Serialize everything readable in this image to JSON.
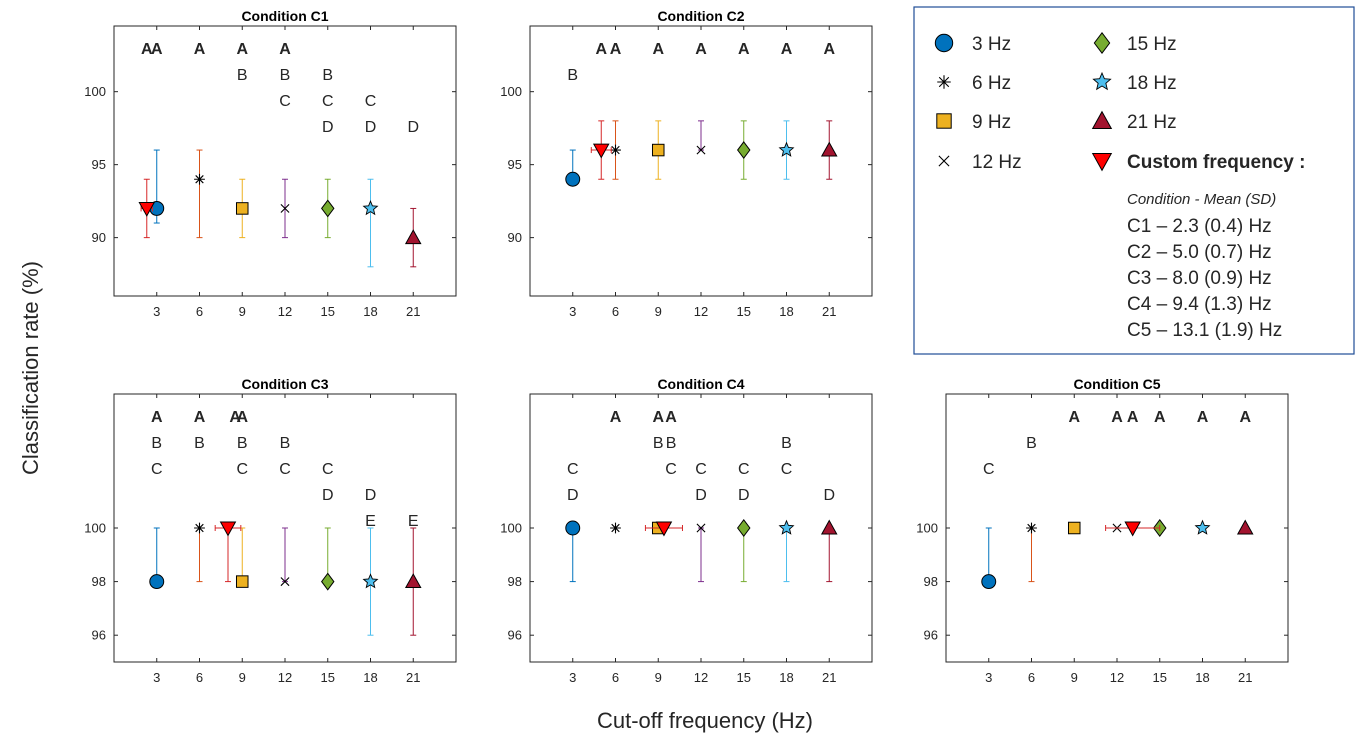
{
  "figure": {
    "ylabel": "Classification rate (%)",
    "xlabel": "Cut-off frequency (Hz)"
  },
  "legend": {
    "entries": [
      {
        "label": "3 Hz",
        "marker": "circle",
        "color": "#0072BD"
      },
      {
        "label": "6 Hz",
        "marker": "asterisk",
        "color": "#000000"
      },
      {
        "label": "9 Hz",
        "marker": "square",
        "color": "#EDB120"
      },
      {
        "label": "12 Hz",
        "marker": "x",
        "color": "#000000"
      },
      {
        "label": "15 Hz",
        "marker": "diamond",
        "color": "#77AC30"
      },
      {
        "label": "18 Hz",
        "marker": "star",
        "color": "#4DBEEE"
      },
      {
        "label": "21 Hz",
        "marker": "triangle-up",
        "color": "#A2142F"
      },
      {
        "label": "Custom frequency :",
        "marker": "triangle-down",
        "color": "#FF0000"
      }
    ],
    "subtitle": "Condition - Mean (SD)",
    "custom_lines": [
      "C1 – 2.3 (0.4) Hz",
      "C2 – 5.0 (0.7) Hz",
      "C3 – 8.0 (0.9) Hz",
      "C4 – 9.4 (1.3) Hz",
      "C5 – 13.1 (1.9) Hz"
    ]
  },
  "chart_data": [
    {
      "type": "scatter",
      "title": "Condition C1",
      "xlabel": "Cut-off frequency (Hz)",
      "ylabel": "Classification rate (%)",
      "xlim": [
        0,
        24
      ],
      "ylim": [
        86,
        104.5
      ],
      "xticks": [
        3,
        6,
        9,
        12,
        15,
        18,
        21
      ],
      "yticks": [
        90,
        95,
        100
      ],
      "grid": false,
      "points": [
        {
          "x": 3,
          "y": 92,
          "low": 91,
          "high": 96,
          "series": "3 Hz"
        },
        {
          "x": 6,
          "y": 94,
          "low": 90,
          "high": 96,
          "series": "6 Hz"
        },
        {
          "x": 9,
          "y": 92,
          "low": 90,
          "high": 94,
          "series": "9 Hz"
        },
        {
          "x": 12,
          "y": 92,
          "low": 90,
          "high": 94,
          "series": "12 Hz"
        },
        {
          "x": 15,
          "y": 92,
          "low": 90,
          "high": 94,
          "series": "15 Hz"
        },
        {
          "x": 18,
          "y": 92,
          "low": 88,
          "high": 94,
          "series": "18 Hz"
        },
        {
          "x": 21,
          "y": 90,
          "low": 88,
          "high": 92,
          "series": "21 Hz"
        },
        {
          "x": 2.3,
          "y": 92,
          "low": 90,
          "high": 94,
          "xerr": 0.4,
          "series": "Custom frequency :"
        }
      ],
      "letters": [
        {
          "x": 2.3,
          "rows": [
            "A"
          ]
        },
        {
          "x": 3,
          "rows": [
            "A"
          ]
        },
        {
          "x": 6,
          "rows": [
            "A"
          ]
        },
        {
          "x": 9,
          "rows": [
            "A",
            "B"
          ]
        },
        {
          "x": 12,
          "rows": [
            "A",
            "B",
            "C"
          ]
        },
        {
          "x": 15,
          "rows": [
            "",
            "B",
            "C",
            "D"
          ]
        },
        {
          "x": 18,
          "rows": [
            "",
            "",
            "C",
            "D"
          ]
        },
        {
          "x": 21,
          "rows": [
            "",
            "",
            "",
            "D"
          ]
        }
      ]
    },
    {
      "type": "scatter",
      "title": "Condition C2",
      "xlabel": "Cut-off frequency (Hz)",
      "ylabel": "Classification rate (%)",
      "xlim": [
        0,
        24
      ],
      "ylim": [
        86,
        104.5
      ],
      "xticks": [
        3,
        6,
        9,
        12,
        15,
        18,
        21
      ],
      "yticks": [
        90,
        95,
        100
      ],
      "grid": false,
      "points": [
        {
          "x": 3,
          "y": 94,
          "low": 94,
          "high": 96,
          "series": "3 Hz"
        },
        {
          "x": 6,
          "y": 96,
          "low": 94,
          "high": 98,
          "series": "6 Hz"
        },
        {
          "x": 9,
          "y": 96,
          "low": 94,
          "high": 98,
          "series": "9 Hz"
        },
        {
          "x": 12,
          "y": 96,
          "low": 96,
          "high": 98,
          "series": "12 Hz"
        },
        {
          "x": 15,
          "y": 96,
          "low": 94,
          "high": 98,
          "series": "15 Hz"
        },
        {
          "x": 18,
          "y": 96,
          "low": 94,
          "high": 98,
          "series": "18 Hz"
        },
        {
          "x": 21,
          "y": 96,
          "low": 94,
          "high": 98,
          "series": "21 Hz"
        },
        {
          "x": 5.0,
          "y": 96,
          "low": 94,
          "high": 98,
          "xerr": 0.7,
          "series": "Custom frequency :"
        }
      ],
      "letters": [
        {
          "x": 3,
          "rows": [
            "",
            "B"
          ]
        },
        {
          "x": 5.0,
          "rows": [
            "A"
          ]
        },
        {
          "x": 6,
          "rows": [
            "A"
          ]
        },
        {
          "x": 9,
          "rows": [
            "A"
          ]
        },
        {
          "x": 12,
          "rows": [
            "A"
          ]
        },
        {
          "x": 15,
          "rows": [
            "A"
          ]
        },
        {
          "x": 18,
          "rows": [
            "A"
          ]
        },
        {
          "x": 21,
          "rows": [
            "A"
          ]
        }
      ]
    },
    {
      "type": "scatter",
      "title": "Condition C3",
      "xlabel": "Cut-off frequency (Hz)",
      "ylabel": "Classification rate (%)",
      "xlim": [
        0,
        24
      ],
      "ylim": [
        95,
        105
      ],
      "xticks": [
        3,
        6,
        9,
        12,
        15,
        18,
        21
      ],
      "yticks": [
        96,
        98,
        100
      ],
      "grid": false,
      "points": [
        {
          "x": 3,
          "y": 98,
          "low": 98,
          "high": 100,
          "series": "3 Hz"
        },
        {
          "x": 6,
          "y": 100,
          "low": 98,
          "high": 100,
          "series": "6 Hz"
        },
        {
          "x": 9,
          "y": 98,
          "low": 98,
          "high": 100,
          "series": "9 Hz"
        },
        {
          "x": 12,
          "y": 98,
          "low": 98,
          "high": 100,
          "series": "12 Hz"
        },
        {
          "x": 15,
          "y": 98,
          "low": 98,
          "high": 100,
          "series": "15 Hz"
        },
        {
          "x": 18,
          "y": 98,
          "low": 96,
          "high": 100,
          "series": "18 Hz"
        },
        {
          "x": 21,
          "y": 98,
          "low": 96,
          "high": 100,
          "series": "21 Hz"
        },
        {
          "x": 8.0,
          "y": 100,
          "low": 98,
          "high": 100,
          "xerr": 0.9,
          "series": "Custom frequency :"
        }
      ],
      "letters": [
        {
          "x": 3,
          "rows": [
            "A",
            "B",
            "C"
          ]
        },
        {
          "x": 6,
          "rows": [
            "A",
            "B"
          ]
        },
        {
          "x": 8.5,
          "rows": [
            "A"
          ]
        },
        {
          "x": 9,
          "rows": [
            "A",
            "B",
            "C"
          ]
        },
        {
          "x": 12,
          "rows": [
            "",
            "B",
            "C"
          ]
        },
        {
          "x": 15,
          "rows": [
            "",
            "",
            "C",
            "D"
          ]
        },
        {
          "x": 18,
          "rows": [
            "",
            "",
            "",
            "D",
            "E"
          ]
        },
        {
          "x": 21,
          "rows": [
            "",
            "",
            "",
            "",
            "E"
          ]
        }
      ]
    },
    {
      "type": "scatter",
      "title": "Condition C4",
      "xlabel": "Cut-off frequency (Hz)",
      "ylabel": "Classification rate (%)",
      "xlim": [
        0,
        24
      ],
      "ylim": [
        95,
        105
      ],
      "xticks": [
        3,
        6,
        9,
        12,
        15,
        18,
        21
      ],
      "yticks": [
        96,
        98,
        100
      ],
      "grid": false,
      "points": [
        {
          "x": 3,
          "y": 100,
          "low": 98,
          "high": 100,
          "series": "3 Hz"
        },
        {
          "x": 6,
          "y": 100,
          "low": 100,
          "high": 100,
          "series": "6 Hz"
        },
        {
          "x": 9,
          "y": 100,
          "low": 100,
          "high": 100,
          "series": "9 Hz"
        },
        {
          "x": 12,
          "y": 100,
          "low": 98,
          "high": 100,
          "series": "12 Hz"
        },
        {
          "x": 15,
          "y": 100,
          "low": 98,
          "high": 100,
          "series": "15 Hz"
        },
        {
          "x": 18,
          "y": 100,
          "low": 98,
          "high": 100,
          "series": "18 Hz"
        },
        {
          "x": 21,
          "y": 100,
          "low": 98,
          "high": 100,
          "series": "21 Hz"
        },
        {
          "x": 9.4,
          "y": 100,
          "low": 100,
          "high": 100,
          "xerr": 1.3,
          "series": "Custom frequency :"
        }
      ],
      "letters": [
        {
          "x": 3,
          "rows": [
            "",
            "",
            "C",
            "D"
          ]
        },
        {
          "x": 6,
          "rows": [
            "A"
          ]
        },
        {
          "x": 9,
          "rows": [
            "A",
            "B"
          ]
        },
        {
          "x": 9.9,
          "rows": [
            "A",
            "B",
            "C"
          ]
        },
        {
          "x": 12,
          "rows": [
            "",
            "",
            "C",
            "D"
          ]
        },
        {
          "x": 15,
          "rows": [
            "",
            "",
            "C",
            "D"
          ]
        },
        {
          "x": 18,
          "rows": [
            "",
            "B",
            "C"
          ]
        },
        {
          "x": 21,
          "rows": [
            "",
            "",
            "",
            "D"
          ]
        }
      ]
    },
    {
      "type": "scatter",
      "title": "Condition C5",
      "xlabel": "Cut-off frequency (Hz)",
      "ylabel": "Classification rate (%)",
      "xlim": [
        0,
        24
      ],
      "ylim": [
        95,
        105
      ],
      "xticks": [
        3,
        6,
        9,
        12,
        15,
        18,
        21
      ],
      "yticks": [
        96,
        98,
        100
      ],
      "grid": false,
      "points": [
        {
          "x": 3,
          "y": 98,
          "low": 98,
          "high": 100,
          "series": "3 Hz"
        },
        {
          "x": 6,
          "y": 100,
          "low": 98,
          "high": 100,
          "series": "6 Hz"
        },
        {
          "x": 9,
          "y": 100,
          "low": 100,
          "high": 100,
          "series": "9 Hz"
        },
        {
          "x": 12,
          "y": 100,
          "low": 100,
          "high": 100,
          "series": "12 Hz"
        },
        {
          "x": 15,
          "y": 100,
          "low": 100,
          "high": 100,
          "series": "15 Hz"
        },
        {
          "x": 18,
          "y": 100,
          "low": 100,
          "high": 100,
          "series": "18 Hz"
        },
        {
          "x": 21,
          "y": 100,
          "low": 100,
          "high": 100,
          "series": "21 Hz"
        },
        {
          "x": 13.1,
          "y": 100,
          "low": 100,
          "high": 100,
          "xerr": 1.9,
          "series": "Custom frequency :"
        }
      ],
      "letters": [
        {
          "x": 3,
          "rows": [
            "",
            "",
            "C"
          ]
        },
        {
          "x": 6,
          "rows": [
            "",
            "B"
          ]
        },
        {
          "x": 9,
          "rows": [
            "A"
          ]
        },
        {
          "x": 12,
          "rows": [
            "A"
          ]
        },
        {
          "x": 13.1,
          "rows": [
            "A"
          ]
        },
        {
          "x": 15,
          "rows": [
            "A"
          ]
        },
        {
          "x": 18,
          "rows": [
            "A"
          ]
        },
        {
          "x": 21,
          "rows": [
            "A"
          ]
        }
      ]
    }
  ]
}
